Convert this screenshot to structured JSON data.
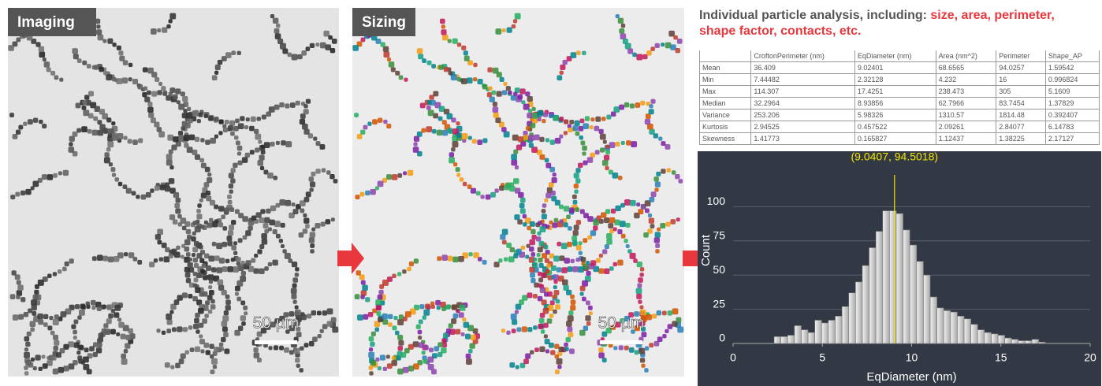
{
  "panels": [
    {
      "label": "Imaging",
      "scale_bar": "50 µm"
    },
    {
      "label": "Sizing",
      "scale_bar": "50 µm"
    }
  ],
  "heading": {
    "lead": "Individual particle analysis, including: ",
    "highlight": "size, area, perimeter, shape factor, contacts, etc."
  },
  "table": {
    "header": [
      "CroftonPerimeter (nm)",
      "EqDiameter (nm)",
      "Area (nm^2)",
      "Perimeter",
      "Shape_AP"
    ],
    "rows": [
      [
        "Mean",
        "36.409",
        "9.02401",
        "68.6565",
        "94.0257",
        "1.59542"
      ],
      [
        "Min",
        "7.44482",
        "2.32128",
        "4.232",
        "16",
        "0.996824"
      ],
      [
        "Max",
        "114.307",
        "17.4251",
        "238.473",
        "305",
        "5.1609"
      ],
      [
        "Median",
        "32.2964",
        "8.93856",
        "62.7966",
        "83.7454",
        "1.37829"
      ],
      [
        "Variance",
        "253.206",
        "5.98326",
        "1310.57",
        "1814.48",
        "0.392407"
      ],
      [
        "Kurtosis",
        "2.94525",
        "0.457522",
        "2.09261",
        "2.84077",
        "6.14783"
      ],
      [
        "Skewness",
        "1.41773",
        "0.165827",
        "1.12437",
        "1.38225",
        "2.17127"
      ]
    ]
  },
  "chart_data": {
    "type": "histogram",
    "x_label": "EqDiameter (nm)",
    "y_label": "Count",
    "bins": [
      2.3,
      2.68,
      3.06,
      3.44,
      3.82,
      4.2,
      4.58,
      4.96,
      5.34,
      5.72,
      6.1,
      6.48,
      6.86,
      7.24,
      7.62,
      8.0,
      8.38,
      8.76,
      9.14,
      9.52,
      9.9,
      10.28,
      10.66,
      11.04,
      11.42,
      11.8,
      12.18,
      12.56,
      12.94,
      13.32,
      13.7,
      14.08,
      14.46,
      14.84,
      15.22,
      15.6,
      15.98,
      16.36,
      16.74,
      17.12,
      17.5
    ],
    "values": [
      5,
      5,
      6,
      13,
      10,
      8,
      17,
      15,
      17,
      20,
      27,
      37,
      45,
      57,
      70,
      82,
      97,
      97,
      95,
      83,
      72,
      60,
      50,
      34,
      26,
      24,
      23,
      20,
      18,
      14,
      10,
      8,
      7,
      6,
      4,
      3,
      2,
      2,
      3,
      1
    ],
    "color": "#d4d4d4",
    "xlim": [
      0,
      20
    ],
    "ylim": [
      0,
      106
    ],
    "xticks": [
      0,
      5,
      10,
      15,
      20
    ],
    "yticks": [
      0,
      25,
      50,
      75,
      100
    ],
    "grid": true,
    "annotation": {
      "x": 9.0407,
      "y": 94.5018,
      "label": "(9.0407, 94.5018)",
      "color": "#f2e600"
    }
  }
}
